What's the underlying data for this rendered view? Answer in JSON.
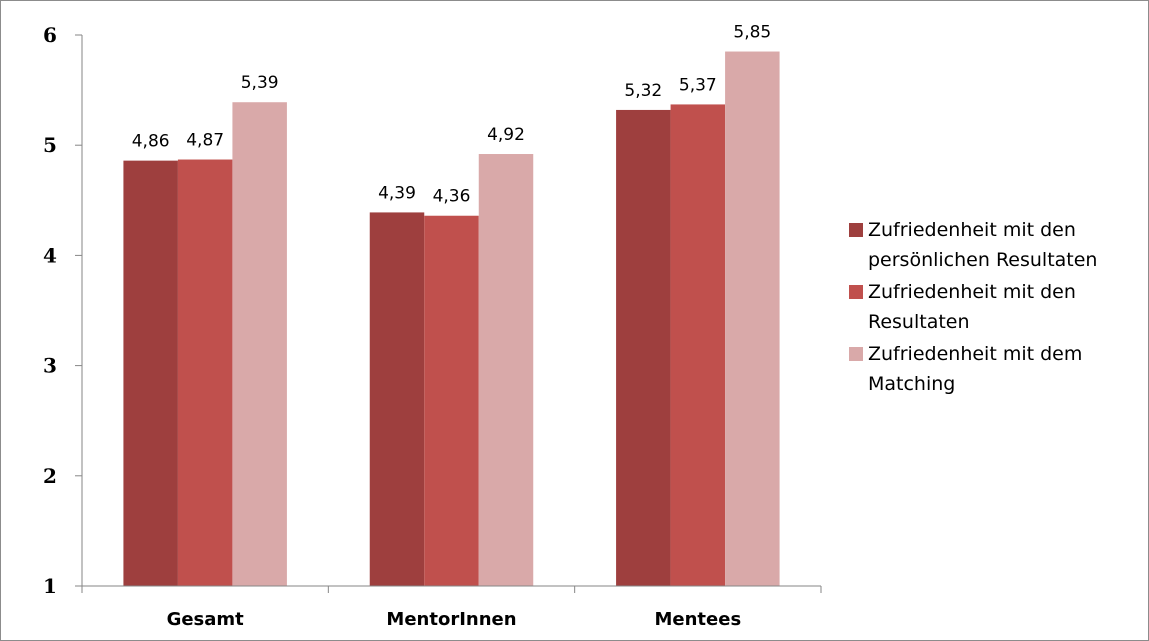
{
  "chart_data": {
    "type": "bar",
    "title": "",
    "xlabel": "",
    "ylabel": "",
    "categories": [
      "Gesamt",
      "MentorInnen",
      "Mentees"
    ],
    "series": [
      {
        "name": "Zufriedenheit mit den persönlichen Resultaten",
        "values": [
          4.86,
          4.39,
          5.32
        ],
        "labels": [
          "4,86",
          "4,39",
          "5,32"
        ],
        "color": "#9e3f3e"
      },
      {
        "name": "Zufriedenheit mit den Resultaten",
        "values": [
          4.87,
          4.36,
          5.37
        ],
        "labels": [
          "4,87",
          "4,36",
          "5,37"
        ],
        "color": "#c0504d"
      },
      {
        "name": "Zufriedenheit mit dem Matching",
        "values": [
          5.39,
          4.92,
          5.85
        ],
        "labels": [
          "5,39",
          "4,92",
          "5,85"
        ],
        "color": "#d9a9a9"
      }
    ],
    "ylim": [
      1,
      6
    ],
    "yticks": [
      "1",
      "2",
      "3",
      "4",
      "5",
      "6"
    ],
    "grid": false,
    "legend_position": "right"
  }
}
